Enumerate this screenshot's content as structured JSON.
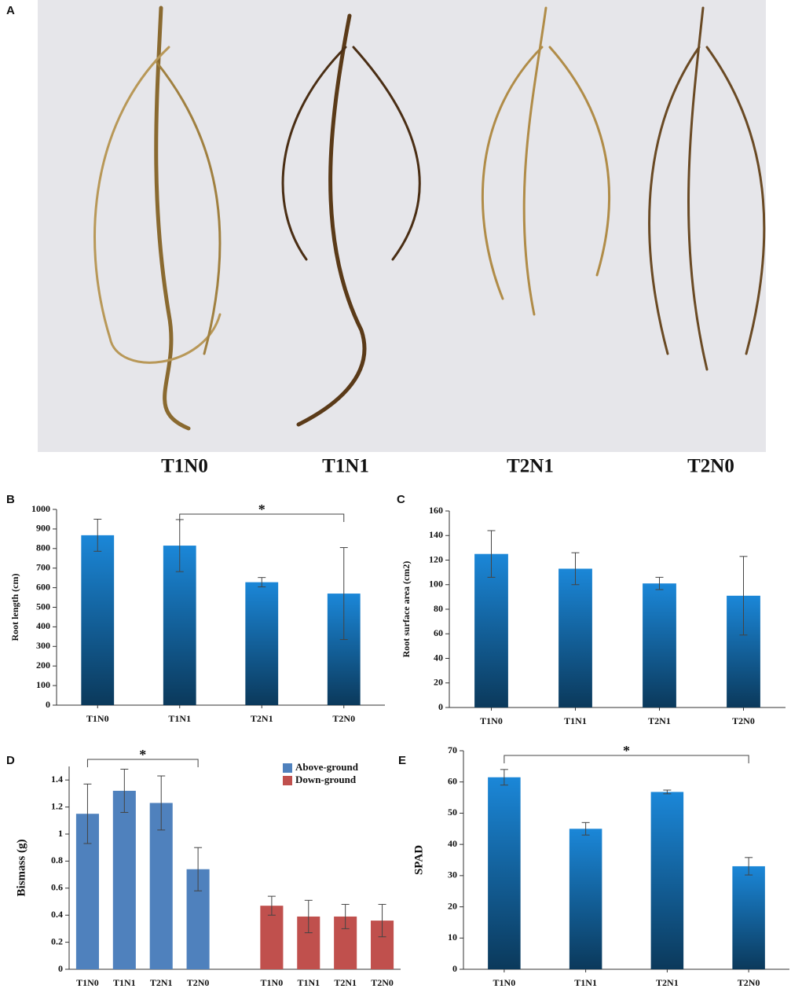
{
  "photo": {
    "panel": "A",
    "labels": [
      "T1N0",
      "T1N1",
      "T2N1",
      "T2N0"
    ]
  },
  "chart_data": [
    {
      "type": "bar",
      "panel": "B",
      "ylabel": "Root length (cm)",
      "categories": [
        "T1N0",
        "T1N1",
        "T2N1",
        "T2N0"
      ],
      "values": [
        868,
        815,
        628,
        570
      ],
      "errors": [
        82,
        133,
        24,
        235
      ],
      "color": "#1b87d8",
      "ylim": [
        0,
        1000
      ],
      "yticks": [
        0,
        100,
        200,
        300,
        400,
        500,
        600,
        700,
        800,
        900,
        1000
      ],
      "annotations": [
        {
          "text": "*",
          "between": [
            "T1N1",
            "T2N0"
          ]
        }
      ]
    },
    {
      "type": "bar",
      "panel": "C",
      "ylabel": "Root surface area (cm2)",
      "categories": [
        "T1N0",
        "T1N1",
        "T2N1",
        "T2N0"
      ],
      "values": [
        125,
        113,
        101,
        91
      ],
      "errors": [
        19,
        13,
        5,
        32
      ],
      "color": "#1b87d8",
      "ylim": [
        0,
        160
      ],
      "yticks": [
        0,
        20,
        40,
        60,
        80,
        100,
        120,
        140,
        160
      ],
      "annotations": []
    },
    {
      "type": "grouped_bar",
      "panel": "D",
      "ylabel": "Bismass (g)",
      "categories": [
        "T1N0",
        "T1N1",
        "T2N1",
        "T2N0"
      ],
      "series": [
        {
          "name": "Above-ground",
          "color": "#4f81bd",
          "values": [
            1.15,
            1.32,
            1.23,
            0.74
          ],
          "errors": [
            0.22,
            0.16,
            0.2,
            0.16
          ]
        },
        {
          "name": "Down-ground",
          "color": "#c0504d",
          "values": [
            0.47,
            0.39,
            0.39,
            0.36
          ],
          "errors": [
            0.07,
            0.12,
            0.09,
            0.12
          ]
        }
      ],
      "ylim": [
        0,
        1.5
      ],
      "yticks": [
        0,
        0.2,
        0.4,
        0.6,
        0.8,
        1,
        1.2,
        1.4
      ],
      "legend": "upper right",
      "annotations": [
        {
          "text": "*",
          "between": [
            "T1N0",
            "T2N0"
          ]
        }
      ]
    },
    {
      "type": "bar",
      "panel": "E",
      "ylabel": "SPAD",
      "categories": [
        "T1N0",
        "T1N1",
        "T2N1",
        "T2N0"
      ],
      "values": [
        61.5,
        45,
        56.8,
        33
      ],
      "errors": [
        2.5,
        2,
        0.6,
        2.8
      ],
      "color": "#1b87d8",
      "ylim": [
        0,
        70
      ],
      "yticks": [
        0,
        10,
        20,
        30,
        40,
        50,
        60,
        70
      ],
      "annotations": [
        {
          "text": "*",
          "between": [
            "T1N0",
            "T2N0"
          ]
        }
      ]
    }
  ]
}
